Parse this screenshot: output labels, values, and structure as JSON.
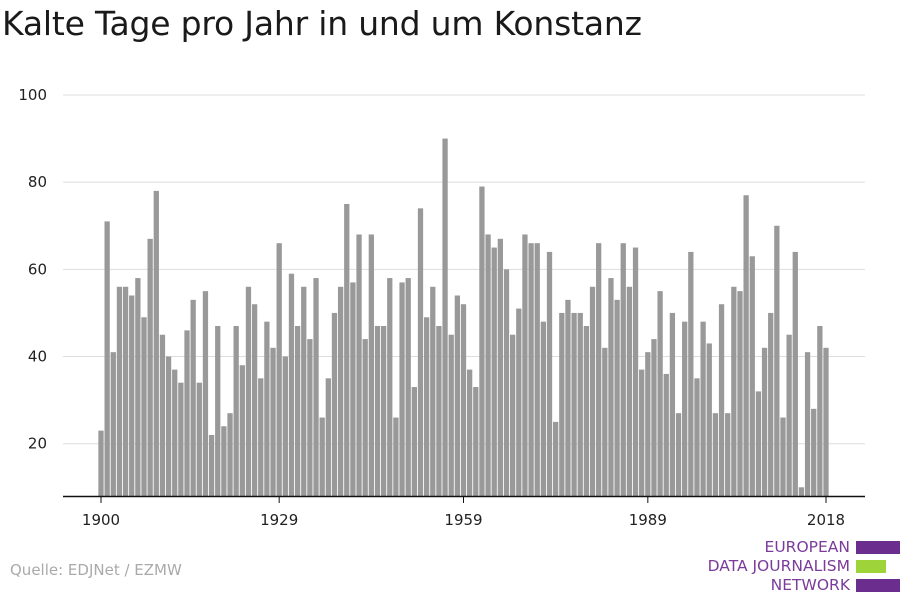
{
  "chart_data": {
    "type": "bar",
    "title": "Kalte Tage pro Jahr in und um Konstanz",
    "xlabel": "",
    "ylabel": "",
    "x": [
      1900,
      1901,
      1902,
      1903,
      1904,
      1905,
      1906,
      1907,
      1908,
      1909,
      1910,
      1911,
      1912,
      1913,
      1914,
      1915,
      1916,
      1917,
      1918,
      1919,
      1920,
      1921,
      1922,
      1923,
      1924,
      1925,
      1926,
      1927,
      1928,
      1929,
      1930,
      1931,
      1932,
      1933,
      1934,
      1935,
      1936,
      1937,
      1938,
      1939,
      1940,
      1941,
      1942,
      1943,
      1944,
      1945,
      1946,
      1947,
      1948,
      1949,
      1950,
      1951,
      1952,
      1953,
      1954,
      1955,
      1956,
      1957,
      1958,
      1959,
      1960,
      1961,
      1962,
      1963,
      1964,
      1965,
      1966,
      1967,
      1968,
      1969,
      1970,
      1971,
      1972,
      1973,
      1974,
      1975,
      1976,
      1977,
      1978,
      1979,
      1980,
      1981,
      1982,
      1983,
      1984,
      1985,
      1986,
      1987,
      1988,
      1989,
      1990,
      1991,
      1992,
      1993,
      1994,
      1995,
      1996,
      1997,
      1998,
      1999,
      2000,
      2001,
      2002,
      2003,
      2004,
      2005,
      2006,
      2007,
      2008,
      2009,
      2010,
      2011,
      2012,
      2013,
      2014,
      2015,
      2016,
      2017,
      2018
    ],
    "values": [
      23,
      71,
      41,
      56,
      56,
      54,
      58,
      49,
      67,
      78,
      45,
      40,
      37,
      34,
      46,
      53,
      34,
      55,
      22,
      47,
      24,
      27,
      47,
      38,
      56,
      52,
      35,
      48,
      42,
      66,
      40,
      59,
      47,
      56,
      44,
      58,
      26,
      35,
      50,
      56,
      75,
      57,
      68,
      44,
      68,
      47,
      47,
      58,
      26,
      57,
      58,
      33,
      74,
      49,
      56,
      47,
      90,
      45,
      54,
      52,
      37,
      33,
      79,
      68,
      65,
      67,
      60,
      45,
      51,
      68,
      66,
      66,
      48,
      64,
      25,
      50,
      53,
      50,
      50,
      47,
      56,
      66,
      42,
      58,
      53,
      66,
      56,
      65,
      37,
      41,
      44,
      55,
      36,
      50,
      27,
      48,
      64,
      35,
      48,
      43,
      27,
      52,
      27,
      56,
      55,
      77,
      63,
      32,
      42,
      50,
      70,
      26,
      45,
      64,
      10,
      41,
      28,
      47,
      42
    ],
    "xticks": [
      "1900",
      "1929",
      "1959",
      "1989",
      "2018"
    ],
    "yticks": [
      "20",
      "40",
      "60",
      "80",
      "100"
    ],
    "ylim": [
      8,
      100
    ],
    "bar_color": "#999999",
    "grid": true
  },
  "source": "Quelle: EDJNet / EZMW",
  "logo": {
    "lines": [
      "EUROPEAN",
      "DATA JOURNALISM",
      "NETWORK"
    ],
    "text_color": "#7b3b9a",
    "bar_colors": [
      "#6b2d8e",
      "#9ed43a",
      "#6b2d8e"
    ]
  }
}
